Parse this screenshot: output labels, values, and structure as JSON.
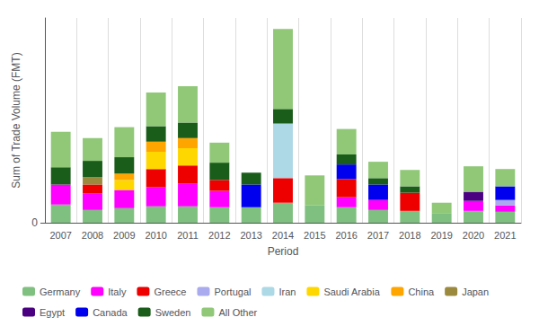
{
  "chart_data": {
    "type": "bar",
    "stacked": true,
    "xlabel": "Period",
    "ylabel": "Sum of Trade Volume (FMT)",
    "categories": [
      "2007",
      "2008",
      "2009",
      "2010",
      "2011",
      "2012",
      "2013",
      "2014",
      "2015",
      "2016",
      "2017",
      "2018",
      "2019",
      "2020",
      "2021"
    ],
    "series": [
      {
        "name": "Germany",
        "color": "#7FBF7F",
        "values": [
          200,
          140,
          160,
          180,
          180,
          170,
          170,
          220,
          190,
          170,
          140,
          130,
          100,
          130,
          120
        ]
      },
      {
        "name": "Italy",
        "color": "#FF00FF",
        "values": [
          220,
          180,
          200,
          210,
          250,
          180,
          0,
          0,
          0,
          110,
          110,
          0,
          0,
          110,
          70
        ]
      },
      {
        "name": "Greece",
        "color": "#EE0000",
        "values": [
          0,
          100,
          0,
          200,
          200,
          120,
          0,
          270,
          0,
          200,
          0,
          200,
          0,
          0,
          0
        ]
      },
      {
        "name": "Portugal",
        "color": "#AAAAEE",
        "values": [
          0,
          0,
          0,
          0,
          0,
          0,
          0,
          0,
          0,
          0,
          0,
          0,
          0,
          0,
          60
        ]
      },
      {
        "name": "Iran",
        "color": "#ADD8E6",
        "values": [
          0,
          0,
          0,
          0,
          0,
          0,
          0,
          600,
          0,
          0,
          0,
          0,
          0,
          0,
          0
        ]
      },
      {
        "name": "Saudi Arabia",
        "color": "#FFD700",
        "values": [
          0,
          0,
          110,
          190,
          190,
          0,
          0,
          0,
          0,
          0,
          0,
          0,
          0,
          0,
          0
        ]
      },
      {
        "name": "China",
        "color": "#FFA500",
        "values": [
          0,
          0,
          70,
          110,
          110,
          0,
          0,
          0,
          0,
          0,
          0,
          0,
          0,
          0,
          0
        ]
      },
      {
        "name": "Japan",
        "color": "#9B8A3E",
        "values": [
          0,
          80,
          0,
          0,
          0,
          0,
          0,
          0,
          0,
          0,
          0,
          0,
          0,
          0,
          0
        ]
      },
      {
        "name": "Egypt",
        "color": "#4B0082",
        "values": [
          0,
          0,
          0,
          0,
          0,
          0,
          0,
          0,
          0,
          0,
          0,
          0,
          0,
          100,
          0
        ]
      },
      {
        "name": "Canada",
        "color": "#0000EE",
        "values": [
          0,
          0,
          0,
          0,
          0,
          0,
          250,
          0,
          0,
          160,
          170,
          0,
          0,
          0,
          150
        ]
      },
      {
        "name": "Sweden",
        "color": "#1A5C1A",
        "values": [
          190,
          180,
          180,
          170,
          170,
          190,
          130,
          160,
          0,
          110,
          70,
          70,
          0,
          0,
          0
        ]
      },
      {
        "name": "All Other",
        "color": "#90C878",
        "values": [
          390,
          250,
          330,
          370,
          400,
          220,
          0,
          880,
          330,
          280,
          180,
          180,
          120,
          280,
          190
        ]
      }
    ],
    "ylim": [
      0,
      2250
    ],
    "yticks": [
      0
    ],
    "grid": true,
    "legend": "bottom"
  }
}
